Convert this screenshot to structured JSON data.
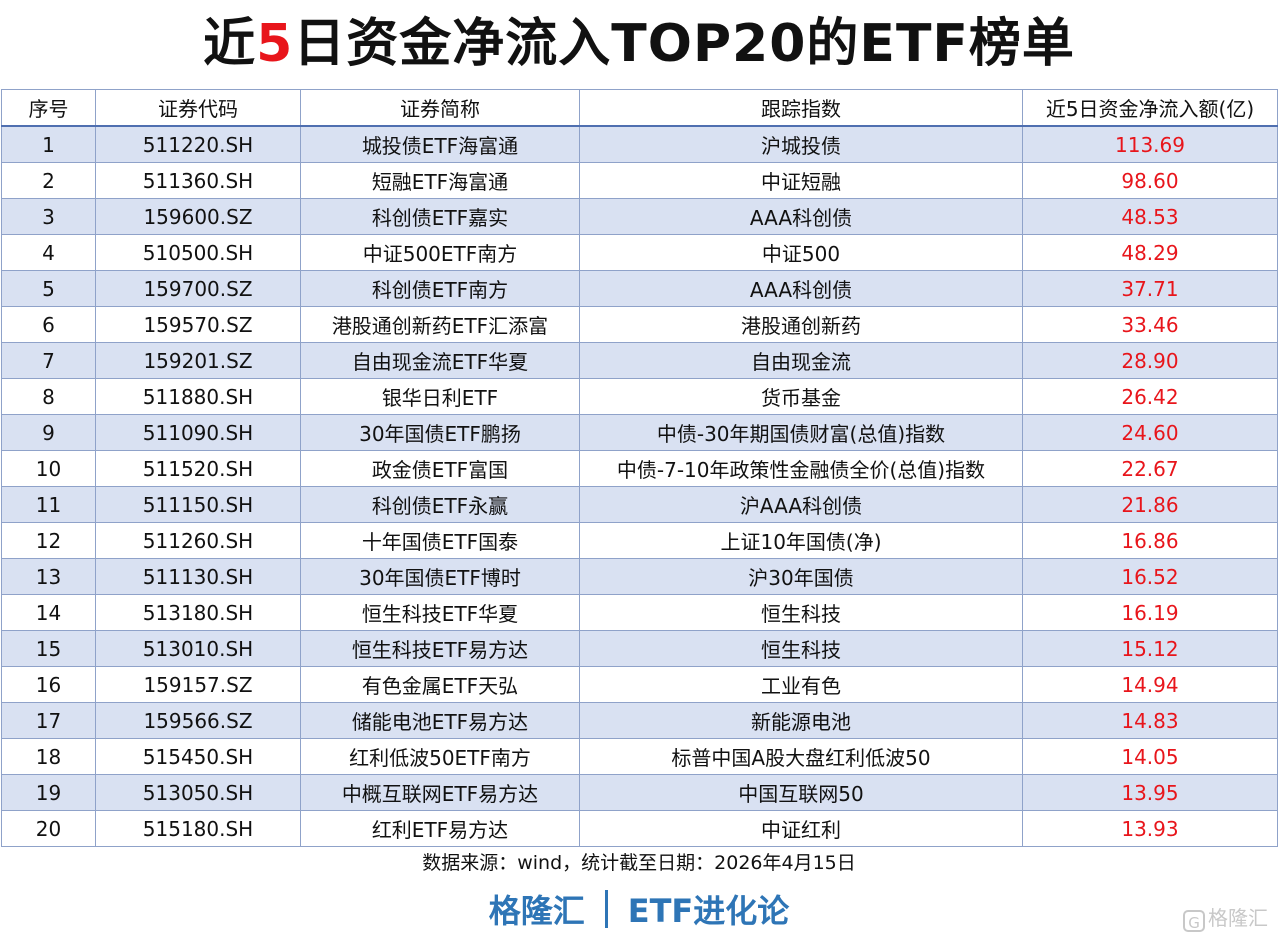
{
  "title": {
    "prefix": "近",
    "highlight": "5",
    "suffix": "日资金净流入TOP20的ETF榜单",
    "highlight_color": "#e8151b"
  },
  "table": {
    "headers": [
      "序号",
      "证券代码",
      "证券简称",
      "跟踪指数",
      "近5日资金净流入额(亿)"
    ],
    "rows": [
      {
        "rank": "1",
        "code": "511220.SH",
        "name": "城投债ETF海富通",
        "index": "沪城投债",
        "inflow": "113.69"
      },
      {
        "rank": "2",
        "code": "511360.SH",
        "name": "短融ETF海富通",
        "index": "中证短融",
        "inflow": "98.60"
      },
      {
        "rank": "3",
        "code": "159600.SZ",
        "name": "科创债ETF嘉实",
        "index": "AAA科创债",
        "inflow": "48.53"
      },
      {
        "rank": "4",
        "code": "510500.SH",
        "name": "中证500ETF南方",
        "index": "中证500",
        "inflow": "48.29"
      },
      {
        "rank": "5",
        "code": "159700.SZ",
        "name": "科创债ETF南方",
        "index": "AAA科创债",
        "inflow": "37.71"
      },
      {
        "rank": "6",
        "code": "159570.SZ",
        "name": "港股通创新药ETF汇添富",
        "index": "港股通创新药",
        "inflow": "33.46"
      },
      {
        "rank": "7",
        "code": "159201.SZ",
        "name": "自由现金流ETF华夏",
        "index": "自由现金流",
        "inflow": "28.90"
      },
      {
        "rank": "8",
        "code": "511880.SH",
        "name": "银华日利ETF",
        "index": "货币基金",
        "inflow": "26.42"
      },
      {
        "rank": "9",
        "code": "511090.SH",
        "name": "30年国债ETF鹏扬",
        "index": "中债-30年期国债财富(总值)指数",
        "inflow": "24.60"
      },
      {
        "rank": "10",
        "code": "511520.SH",
        "name": "政金债ETF富国",
        "index": "中债-7-10年政策性金融债全价(总值)指数",
        "inflow": "22.67"
      },
      {
        "rank": "11",
        "code": "511150.SH",
        "name": "科创债ETF永赢",
        "index": "沪AAA科创债",
        "inflow": "21.86"
      },
      {
        "rank": "12",
        "code": "511260.SH",
        "name": "十年国债ETF国泰",
        "index": "上证10年国债(净)",
        "inflow": "16.86"
      },
      {
        "rank": "13",
        "code": "511130.SH",
        "name": "30年国债ETF博时",
        "index": "沪30年国债",
        "inflow": "16.52"
      },
      {
        "rank": "14",
        "code": "513180.SH",
        "name": "恒生科技ETF华夏",
        "index": "恒生科技",
        "inflow": "16.19"
      },
      {
        "rank": "15",
        "code": "513010.SH",
        "name": "恒生科技ETF易方达",
        "index": "恒生科技",
        "inflow": "15.12"
      },
      {
        "rank": "16",
        "code": "159157.SZ",
        "name": "有色金属ETF天弘",
        "index": "工业有色",
        "inflow": "14.94"
      },
      {
        "rank": "17",
        "code": "159566.SZ",
        "name": "储能电池ETF易方达",
        "index": "新能源电池",
        "inflow": "14.83"
      },
      {
        "rank": "18",
        "code": "515450.SH",
        "name": "红利低波50ETF南方",
        "index": "标普中国A股大盘红利低波50",
        "inflow": "14.05"
      },
      {
        "rank": "19",
        "code": "513050.SH",
        "name": "中概互联网ETF易方达",
        "index": "中国互联网50",
        "inflow": "13.95"
      },
      {
        "rank": "20",
        "code": "515180.SH",
        "name": "红利ETF易方达",
        "index": "中证红利",
        "inflow": "13.93"
      }
    ]
  },
  "source": "数据来源：wind，统计截至日期：2026年4月15日",
  "brand": {
    "left": "格隆汇",
    "right": "ETF进化论"
  },
  "watermark": {
    "icon": "G",
    "text": "格隆汇"
  },
  "colors": {
    "stripe": "#d9e1f2",
    "border": "#8fa2c9",
    "value_red": "#e8151b",
    "brand_blue": "#2e75b6"
  }
}
